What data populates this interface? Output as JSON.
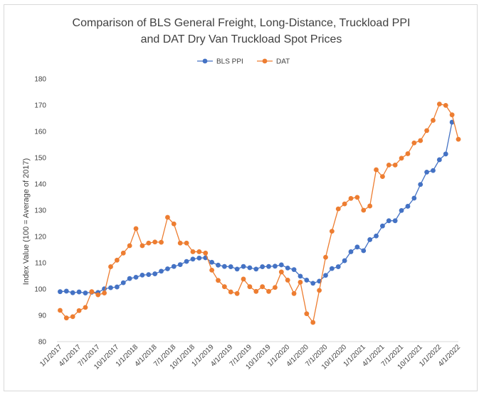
{
  "chart_data": {
    "type": "line",
    "title": [
      "Comparison of BLS General Freight, Long-Distance, Truckload PPI",
      "and DAT Dry Van Truckload Spot Prices"
    ],
    "ylabel": "Index Value (100 = Average of 2017)",
    "xlabel": "",
    "ylim": [
      80,
      180
    ],
    "yticks": [
      80,
      90,
      100,
      110,
      120,
      130,
      140,
      150,
      160,
      170,
      180
    ],
    "xtick_labels": [
      "1/1/2017",
      "4/1/2017",
      "7/1/2017",
      "10/1/2017",
      "1/1/2018",
      "4/1/2018",
      "7/1/2018",
      "10/1/2018",
      "1/1/2019",
      "4/1/2019",
      "7/1/2019",
      "10/1/2019",
      "1/1/2020",
      "4/1/2020",
      "7/1/2020",
      "10/1/2020",
      "1/1/2021",
      "4/1/2021",
      "7/1/2021",
      "10/1/2021",
      "1/1/2022",
      "4/1/2022"
    ],
    "grid": false,
    "legend_position": "top-center",
    "colors": {
      "bls": "#4472C4",
      "dat": "#ED7D31"
    },
    "series": [
      {
        "name": "BLS PPI",
        "values": [
          99.0,
          99.2,
          98.6,
          98.9,
          98.5,
          98.8,
          98.7,
          100.1,
          100.5,
          100.8,
          102.4,
          104.0,
          104.5,
          105.3,
          105.5,
          105.8,
          106.8,
          107.7,
          108.6,
          109.3,
          110.5,
          111.4,
          111.8,
          111.9,
          110.2,
          109.1,
          108.6,
          108.5,
          107.6,
          108.6,
          108.1,
          107.6,
          108.5,
          108.6,
          108.7,
          109.2,
          108.0,
          107.4,
          104.9,
          103.4,
          102.2,
          103.0,
          105.2,
          107.8,
          108.5,
          110.8,
          114.2,
          116.0,
          114.6,
          118.8,
          120.2,
          124.0,
          126.0,
          126.0,
          129.9,
          131.5,
          134.6,
          139.8,
          144.5,
          145.1,
          149.2,
          151.4,
          163.5
        ]
      },
      {
        "name": "DAT",
        "values": [
          91.9,
          89.0,
          89.5,
          91.8,
          93.0,
          99.0,
          97.8,
          98.5,
          108.5,
          111.0,
          113.7,
          116.5,
          123.0,
          116.5,
          117.5,
          117.9,
          117.8,
          127.3,
          124.8,
          117.5,
          117.5,
          114.2,
          114.2,
          113.7,
          107.2,
          103.3,
          100.9,
          98.9,
          98.3,
          103.8,
          100.9,
          99.1,
          100.9,
          99.1,
          100.6,
          106.5,
          103.4,
          98.3,
          102.6,
          90.6,
          87.3,
          99.5,
          112.1,
          122.0,
          130.5,
          132.4,
          134.5,
          134.9,
          130.0,
          131.6,
          145.4,
          142.8,
          147.2,
          147.2,
          149.8,
          151.5,
          155.6,
          156.5,
          160.3,
          164.2,
          170.4,
          169.9,
          166.3,
          157.0
        ]
      }
    ]
  }
}
